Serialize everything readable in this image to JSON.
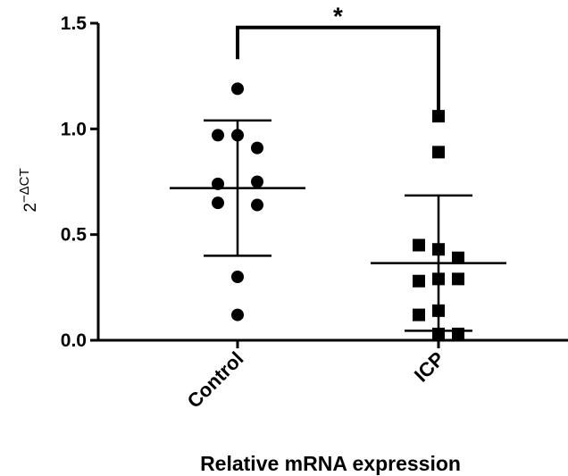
{
  "chart_data": {
    "type": "scatter",
    "title": "",
    "xlabel": "Relative mRNA expression",
    "ylabel_base": "2",
    "ylabel_exp": "−ΔCT",
    "ylim": [
      0,
      1.5
    ],
    "yticks": [
      {
        "value": 0.0,
        "label": "0.0"
      },
      {
        "value": 0.5,
        "label": "0.5"
      },
      {
        "value": 1.0,
        "label": "1.0"
      },
      {
        "value": 1.5,
        "label": "1.5"
      }
    ],
    "categories": [
      "Control",
      "ICP"
    ],
    "series": [
      {
        "category": "Control",
        "marker": "circle",
        "points": [
          {
            "dx": 0,
            "y": 1.19
          },
          {
            "dx": -1,
            "y": 0.97
          },
          {
            "dx": 0,
            "y": 0.97
          },
          {
            "dx": 1,
            "y": 0.91
          },
          {
            "dx": -1,
            "y": 0.74
          },
          {
            "dx": 1,
            "y": 0.75
          },
          {
            "dx": -1,
            "y": 0.65
          },
          {
            "dx": 1,
            "y": 0.64
          },
          {
            "dx": 0,
            "y": 0.3
          },
          {
            "dx": 0,
            "y": 0.12
          }
        ],
        "mean": 0.72,
        "sd_upper": 1.04,
        "sd_lower": 0.4
      },
      {
        "category": "ICP",
        "marker": "square",
        "points": [
          {
            "dx": 0,
            "y": 1.06
          },
          {
            "dx": 0,
            "y": 0.89
          },
          {
            "dx": -1,
            "y": 0.45
          },
          {
            "dx": 0,
            "y": 0.43
          },
          {
            "dx": 1,
            "y": 0.39
          },
          {
            "dx": -1,
            "y": 0.28
          },
          {
            "dx": 0,
            "y": 0.29
          },
          {
            "dx": 1,
            "y": 0.29
          },
          {
            "dx": -1,
            "y": 0.12
          },
          {
            "dx": 0,
            "y": 0.14
          },
          {
            "dx": 0,
            "y": 0.03
          },
          {
            "dx": 1,
            "y": 0.03
          }
        ],
        "mean": 0.365,
        "sd_upper": 0.685,
        "sd_lower": 0.045
      }
    ],
    "significance": {
      "label": "*",
      "between": [
        "Control",
        "ICP"
      ],
      "y": 1.48
    }
  }
}
